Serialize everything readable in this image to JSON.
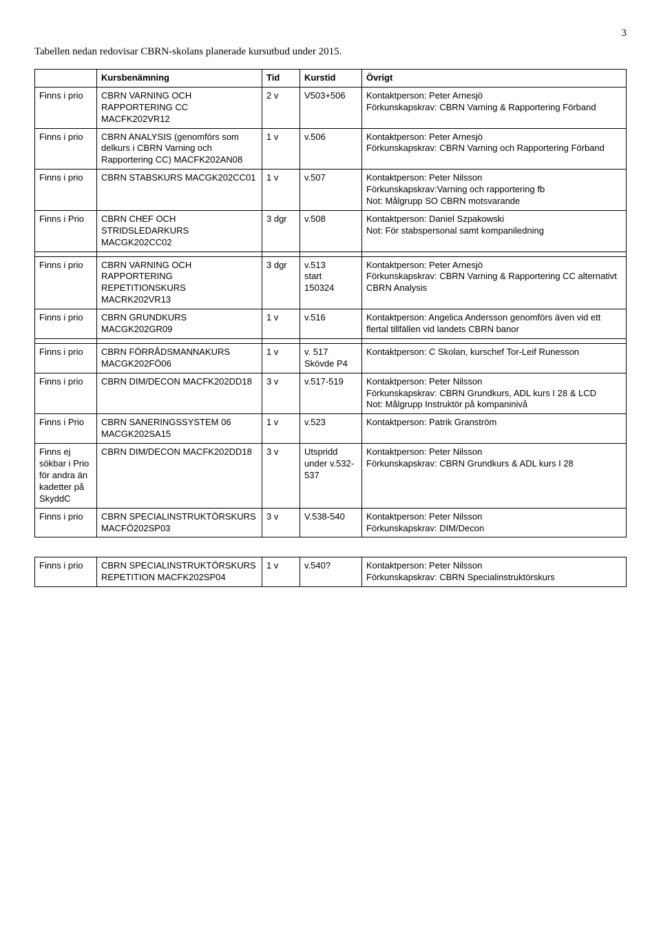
{
  "page_number": "3",
  "intro": "Tabellen nedan redovisar CBRN-skolans planerade kursutbud under 2015.",
  "header": {
    "col0": "",
    "col1": "Kursbenämning",
    "col2": "Tid",
    "col3": "Kurstid",
    "col4": "Övrigt"
  },
  "rows": [
    {
      "c0": "Finns i prio",
      "c1": "CBRN VARNING OCH RAPPORTERING CC MACFK202VR12",
      "c2": "2 v",
      "c3": "V503+506",
      "c4": "Kontaktperson: Peter Arnesjö\nFörkunskapskrav: CBRN Varning & Rapportering Förband"
    },
    {
      "c0": "Finns i prio",
      "c1": "CBRN ANALYSIS (genomförs som delkurs i CBRN Varning och Rapportering CC) MACFK202AN08",
      "c2": "1 v",
      "c3": "v.506",
      "c4": "Kontaktperson: Peter Arnesjö\nFörkunskapskrav: CBRN Varning och Rapportering Förband"
    },
    {
      "c0": "Finns i prio",
      "c1": "CBRN STABSKURS MACGK202CC01",
      "c2": "1 v",
      "c3": "v.507",
      "c4": "Kontaktperson: Peter Nilsson\nFörkunskapskrav:Varning och rapportering fb\nNot: Målgrupp SO CBRN motsvarande"
    },
    {
      "c0": "Finns i Prio",
      "c1": "CBRN CHEF OCH STRIDSLEDARKURS MACGK202CC02",
      "c2": "3 dgr",
      "c3": "v.508",
      "c4": "Kontaktperson: Daniel Szpakowski\nNot: För stabspersonal samt kompaniledning"
    },
    {
      "gap": true
    },
    {
      "c0": "Finns i prio",
      "c1": "CBRN VARNING OCH RAPPORTERING REPETITIONSKURS MACRK202VR13",
      "c2": "3 dgr",
      "c3": "v.513\nstart\n150324",
      "c4": "Kontaktperson: Peter Arnesjö\nFörkunskapskrav: CBRN Varning & Rapportering CC alternativt CBRN Analysis"
    },
    {
      "c0": "Finns i prio",
      "c1": "CBRN GRUNDKURS MACGK202GR09",
      "c2": "1 v",
      "c3": "v.516",
      "c4": "Kontaktperson: Angelica Andersson genomförs även vid ett flertal tillfällen vid landets CBRN banor"
    },
    {
      "gap": true
    },
    {
      "c0": "Finns i prio",
      "c1": "CBRN FÖRRÅDSMANNAKURS MACGK202FÖ06",
      "c2": "1 v",
      "c3": "v. 517\nSkövde P4",
      "c4": "Kontaktperson: C Skolan, kurschef Tor-Leif Runesson"
    },
    {
      "c0": "Finns i prio",
      "c1": "CBRN DIM/DECON MACFK202DD18",
      "c2": "3 v",
      "c3": "v.517-519",
      "c4": "Kontaktperson: Peter Nilsson\nFörkunskapskrav: CBRN Grundkurs, ADL kurs I 28 & LCD\nNot: Målgrupp Instruktör på kompaninivå"
    },
    {
      "c0": "Finns i Prio",
      "c1": "CBRN SANERINGSSYSTEM 06 MACGK202SA15",
      "c2": "1 v",
      "c3": "v.523",
      "c4": "Kontaktperson: Patrik Granström"
    },
    {
      "c0": "Finns ej sökbar i Prio för andra än kadetter på SkyddC",
      "c1": "CBRN DIM/DECON MACFK202DD18",
      "c2": "3 v",
      "c3": "Utspridd under v.532-537",
      "c4": "Kontaktperson: Peter Nilsson\nFörkunskapskrav: CBRN Grundkurs & ADL kurs I 28"
    },
    {
      "c0": "Finns i prio",
      "c1": "CBRN SPECIALINSTRUKTÖRSKURS MACFÖ202SP03",
      "c2": "3 v",
      "c3": "V.538-540",
      "c4": "Kontaktperson: Peter Nilsson\nFörkunskapskrav: DIM/Decon"
    }
  ],
  "rows2": [
    {
      "c0": "Finns i prio",
      "c1": "CBRN SPECIALINSTRUKTÖRSKURS REPETITION MACFK202SP04",
      "c2": "1 v",
      "c3": "v.540?",
      "c4": "Kontaktperson: Peter Nilsson\nFörkunskapskrav: CBRN Specialinstruktörskurs"
    }
  ]
}
